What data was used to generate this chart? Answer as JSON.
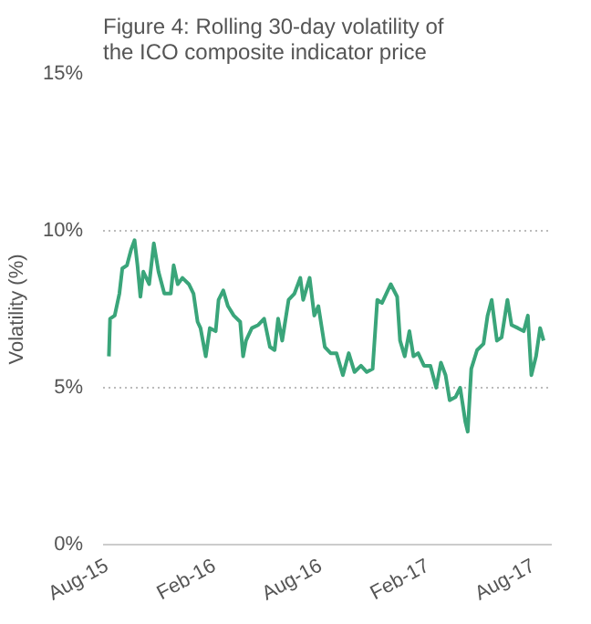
{
  "chart_data": {
    "type": "line",
    "title": "Figure 4: Rolling 30-day volatility of the ICO composite indicator price",
    "ylabel": "Volatility (%)",
    "x": [
      "2015-08-04",
      "2015-08-06",
      "2015-08-14",
      "2015-08-22",
      "2015-08-27",
      "2015-09-04",
      "2015-09-11",
      "2015-09-17",
      "2015-09-22",
      "2015-09-27",
      "2015-10-02",
      "2015-10-12",
      "2015-10-20",
      "2015-10-28",
      "2015-11-07",
      "2015-11-18",
      "2015-11-23",
      "2015-11-30",
      "2015-12-08",
      "2015-12-19",
      "2015-12-27",
      "2016-01-03",
      "2016-01-08",
      "2016-01-17",
      "2016-01-24",
      "2016-02-03",
      "2016-02-08",
      "2016-02-16",
      "2016-02-24",
      "2016-03-05",
      "2016-03-16",
      "2016-03-21",
      "2016-03-26",
      "2016-04-05",
      "2016-04-16",
      "2016-04-26",
      "2016-05-06",
      "2016-05-14",
      "2016-05-20",
      "2016-05-27",
      "2016-06-07",
      "2016-06-17",
      "2016-06-27",
      "2016-07-02",
      "2016-07-13",
      "2016-07-21",
      "2016-07-28",
      "2016-08-08",
      "2016-08-18",
      "2016-08-28",
      "2016-09-08",
      "2016-09-18",
      "2016-09-28",
      "2016-10-09",
      "2016-10-19",
      "2016-10-29",
      "2016-11-06",
      "2016-11-14",
      "2016-11-24",
      "2016-11-29",
      "2016-12-10",
      "2016-12-15",
      "2016-12-23",
      "2016-12-31",
      "2017-01-07",
      "2017-01-15",
      "2017-01-25",
      "2017-02-05",
      "2017-02-15",
      "2017-02-23",
      "2017-03-03",
      "2017-03-10",
      "2017-03-20",
      "2017-03-28",
      "2017-04-06",
      "2017-04-10",
      "2017-04-16",
      "2017-04-26",
      "2017-05-07",
      "2017-05-14",
      "2017-05-21",
      "2017-05-30",
      "2017-06-07",
      "2017-06-17",
      "2017-06-24",
      "2017-07-05",
      "2017-07-15",
      "2017-07-22",
      "2017-07-28",
      "2017-08-05",
      "2017-08-12",
      "2017-08-18"
    ],
    "series": [
      {
        "color": "#3aa57a",
        "values": [
          6.0,
          7.2,
          7.3,
          8.0,
          8.8,
          8.9,
          9.4,
          9.7,
          8.9,
          7.9,
          8.7,
          8.3,
          9.6,
          8.7,
          8.0,
          8.0,
          8.9,
          8.3,
          8.5,
          8.3,
          8.0,
          7.1,
          6.9,
          6.0,
          6.9,
          6.8,
          7.8,
          8.1,
          7.6,
          7.3,
          7.1,
          6.0,
          6.5,
          6.9,
          7.0,
          7.2,
          6.3,
          6.2,
          7.2,
          6.5,
          7.8,
          8.0,
          8.5,
          7.8,
          8.5,
          7.3,
          7.6,
          6.3,
          6.1,
          6.1,
          5.4,
          6.1,
          5.5,
          5.7,
          5.5,
          5.6,
          7.8,
          7.7,
          8.1,
          8.3,
          7.9,
          6.5,
          6.0,
          6.8,
          6.0,
          6.1,
          5.7,
          5.7,
          5.0,
          5.8,
          5.4,
          4.6,
          4.7,
          5.0,
          3.9,
          3.6,
          5.6,
          6.2,
          6.4,
          7.3,
          7.8,
          6.5,
          6.6,
          7.8,
          7.0,
          6.9,
          6.8,
          7.3,
          5.4,
          6.0,
          6.9,
          6.5
        ]
      }
    ],
    "xlim": [
      "2015-07-25",
      "2017-09-01"
    ],
    "xticks": [
      {
        "value": "2015-08-01",
        "label": "Aug-15"
      },
      {
        "value": "2016-02-01",
        "label": "Feb-16"
      },
      {
        "value": "2016-08-01",
        "label": "Aug-16"
      },
      {
        "value": "2017-02-01",
        "label": "Feb-17"
      },
      {
        "value": "2017-08-01",
        "label": "Aug-17"
      }
    ],
    "ylim": [
      0,
      15
    ],
    "yticks": [
      {
        "value": 0,
        "label": "0%"
      },
      {
        "value": 5,
        "label": "5%"
      },
      {
        "value": 10,
        "label": "10%"
      },
      {
        "value": 15,
        "label": "15%"
      }
    ],
    "grid": "y",
    "line_style": "solid",
    "marker": "none"
  }
}
